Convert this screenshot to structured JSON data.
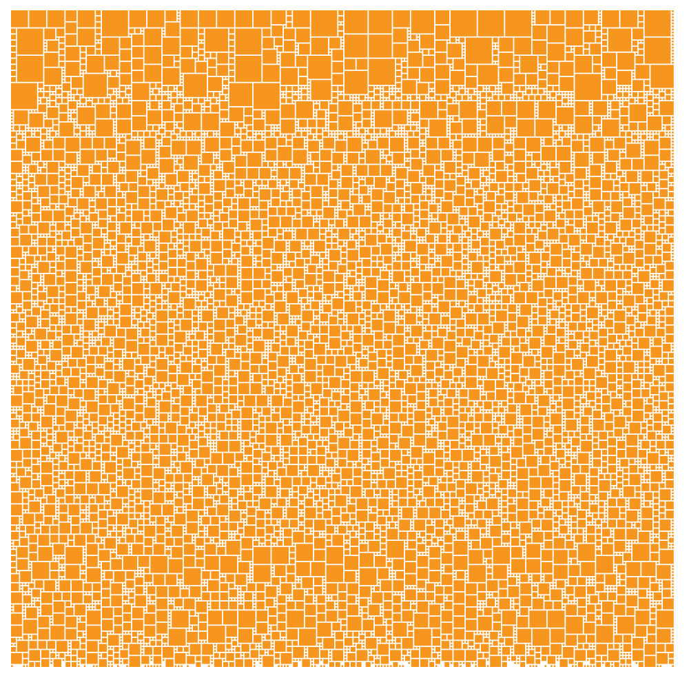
{
  "mosaic": {
    "tile_color": "#F7961E",
    "background_color": "#FFFFFF",
    "shape": "square"
  }
}
